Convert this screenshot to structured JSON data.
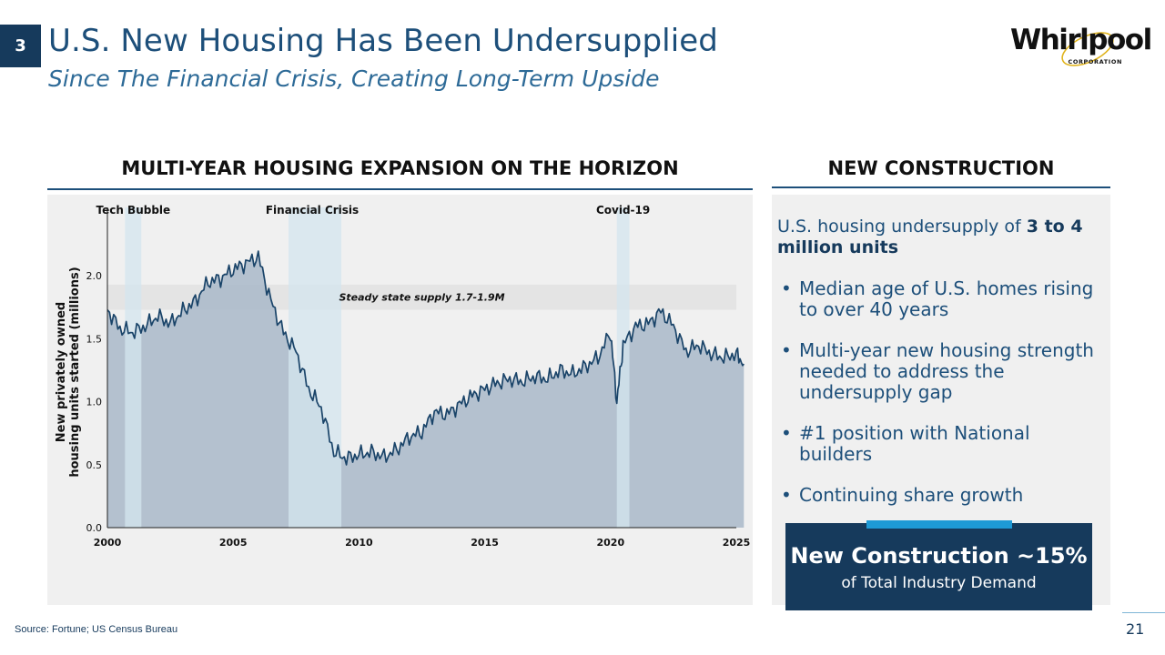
{
  "slide": {
    "number": "3",
    "title": "U.S. New Housing Has Been Undersupplied",
    "subtitle": "Since The Financial Crisis, Creating Long-Term Upside",
    "logo_text": "Whirlpool",
    "logo_sub": "CORPORATION",
    "source": "Source: Fortune; US Census Bureau",
    "page": "21"
  },
  "left_section": {
    "heading": "MULTI-YEAR HOUSING EXPANSION ON THE HORIZON"
  },
  "right_section": {
    "heading": "NEW CONSTRUCTION",
    "lead_prefix": "U.S. housing undersupply of ",
    "lead_bold": "3 to 4 million units",
    "bullets": [
      "Median age of U.S. homes rising to over 40 years",
      "Multi-year new housing strength needed to address the undersupply gap",
      "#1 position with National builders",
      "Continuing share growth"
    ],
    "callout_title": "New Construction ~15%",
    "callout_sub": "of Total Industry Demand"
  },
  "chart_data": {
    "type": "area",
    "ylabel": "New privately owned housing units started (millions)",
    "xlabel": "",
    "xlim": [
      2000,
      2025
    ],
    "ylim": [
      0,
      2.5
    ],
    "x_ticks": [
      "2000",
      "2005",
      "2010",
      "2015",
      "2020",
      "2025"
    ],
    "y_ticks": [
      "0.0",
      "0.5",
      "1.0",
      "1.5",
      "2.0"
    ],
    "band": {
      "label": "Steady state supply 1.7-1.9M",
      "low": 1.73,
      "high": 1.93
    },
    "recessions": [
      {
        "label": "Tech Bubble",
        "start": 2000.7,
        "end": 2001.35
      },
      {
        "label": "Financial Crisis",
        "start": 2007.2,
        "end": 2009.3
      },
      {
        "label": "Covid-19",
        "start": 2020.25,
        "end": 2020.75
      }
    ],
    "x": [
      2000.0,
      2000.5,
      2001.0,
      2001.5,
      2002.0,
      2002.5,
      2003.0,
      2003.5,
      2004.0,
      2004.5,
      2005.0,
      2005.5,
      2006.0,
      2006.5,
      2007.0,
      2007.5,
      2008.0,
      2008.5,
      2009.0,
      2009.5,
      2010.0,
      2010.5,
      2011.0,
      2011.5,
      2012.0,
      2012.5,
      2013.0,
      2013.5,
      2014.0,
      2014.5,
      2015.0,
      2015.5,
      2016.0,
      2016.5,
      2017.0,
      2017.5,
      2018.0,
      2018.5,
      2019.0,
      2019.5,
      2020.0,
      2020.25,
      2020.5,
      2021.0,
      2021.5,
      2022.0,
      2022.5,
      2023.0,
      2023.5,
      2024.0,
      2024.5,
      2025.0,
      2025.3
    ],
    "values": [
      1.73,
      1.58,
      1.55,
      1.6,
      1.68,
      1.62,
      1.72,
      1.8,
      1.95,
      1.98,
      2.05,
      2.1,
      2.15,
      1.8,
      1.55,
      1.4,
      1.1,
      0.95,
      0.6,
      0.55,
      0.58,
      0.6,
      0.56,
      0.62,
      0.72,
      0.76,
      0.92,
      0.9,
      0.98,
      1.05,
      1.1,
      1.15,
      1.18,
      1.16,
      1.2,
      1.18,
      1.25,
      1.22,
      1.28,
      1.35,
      1.55,
      1.0,
      1.45,
      1.6,
      1.62,
      1.72,
      1.6,
      1.4,
      1.45,
      1.38,
      1.35,
      1.38,
      1.3
    ]
  },
  "colors": {
    "navy": "#163a5c",
    "title_blue": "#1d4f7a",
    "area_fill": "#a9b9c9",
    "line": "#1a4469",
    "recession": "#d4e5ef",
    "band": "#e4e4e4",
    "accent": "#1e9ad6"
  }
}
